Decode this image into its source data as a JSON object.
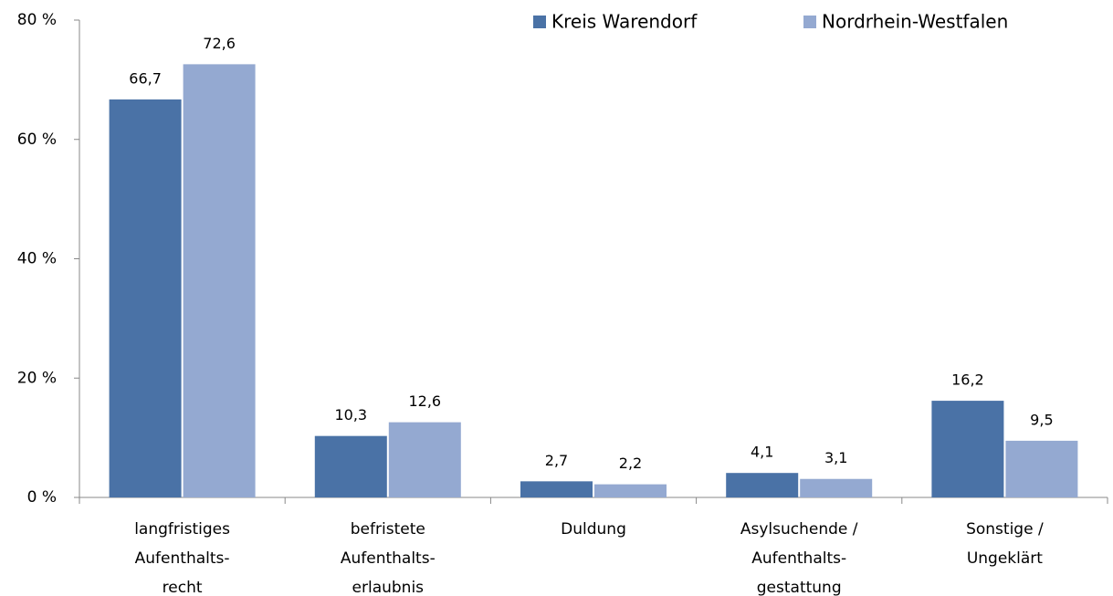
{
  "chart_data": {
    "type": "bar",
    "categories": [
      [
        "langfristiges",
        "Aufenthalts-",
        "recht"
      ],
      [
        "befristete",
        "Aufenthalts-",
        "erlaubnis"
      ],
      [
        "Duldung"
      ],
      [
        "Asylsuchende /",
        "Aufenthalts-",
        "gestattung"
      ],
      [
        "Sonstige /",
        "Ungeklärt"
      ]
    ],
    "series": [
      {
        "name": "Kreis Warendorf",
        "color": "#4a72a6",
        "values": [
          66.7,
          10.3,
          2.7,
          4.1,
          16.2
        ],
        "value_labels": [
          "66,7",
          "10,3",
          "2,7",
          "4,1",
          "16,2"
        ]
      },
      {
        "name": "Nordrhein-Westfalen",
        "color": "#94a9d1",
        "values": [
          72.6,
          12.6,
          2.2,
          3.1,
          9.5
        ],
        "value_labels": [
          "72,6",
          "12,6",
          "2,2",
          "3,1",
          "9,5"
        ]
      }
    ],
    "ylim": [
      0,
      80
    ],
    "yticks": [
      {
        "value": 0,
        "label": "0 %"
      },
      {
        "value": 20,
        "label": "20 %"
      },
      {
        "value": 40,
        "label": "40 %"
      },
      {
        "value": 60,
        "label": "60 %"
      },
      {
        "value": 80,
        "label": "80 %"
      }
    ],
    "grid": false,
    "legend": "top"
  }
}
